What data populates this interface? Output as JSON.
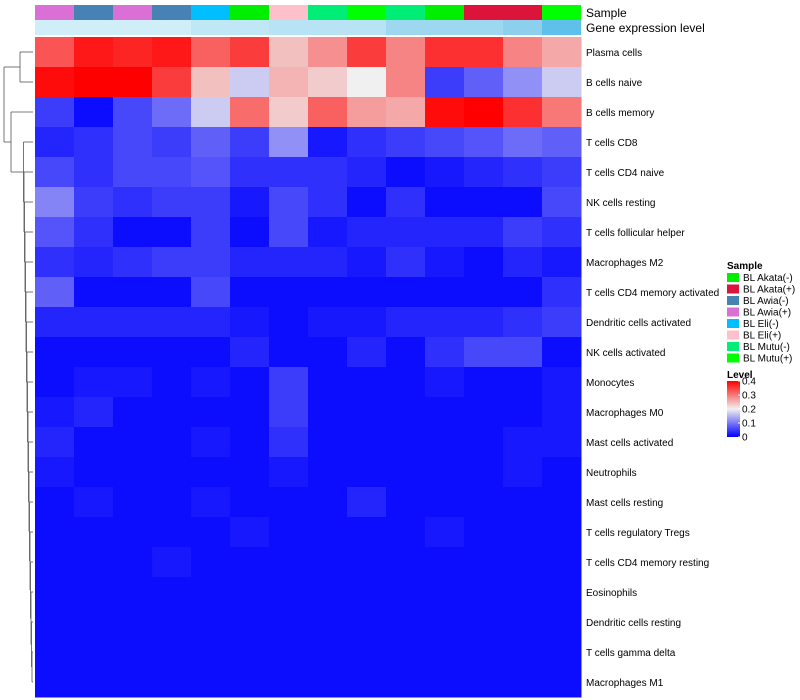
{
  "chart_data": {
    "type": "heatmap",
    "annotation_labels": {
      "sample": "Sample",
      "expression": "Gene expression level"
    },
    "legend": {
      "sample_title": "Sample",
      "level_title": "Level",
      "groups": [
        {
          "name": "BL Akata(-)",
          "color": "#00ee00"
        },
        {
          "name": "BL Akata(+)",
          "color": "#dc143c"
        },
        {
          "name": "BL Awia(-)",
          "color": "#4682b4"
        },
        {
          "name": "BL Awia(+)",
          "color": "#da70d6"
        },
        {
          "name": "BL Eli(-)",
          "color": "#00bfff"
        },
        {
          "name": "BL Eli(+)",
          "color": "#ffc0cb"
        },
        {
          "name": "BL Mutu(-)",
          "color": "#00ee76"
        },
        {
          "name": "BL Mutu(+)",
          "color": "#00ff00"
        }
      ],
      "level_ticks": [
        0.4,
        0.3,
        0.2,
        0.1,
        0
      ]
    },
    "color_scale": {
      "min": 0,
      "mid": 0.2,
      "max": 0.4,
      "low_color": "#0000ff",
      "mid_color": "#f0f0f0",
      "high_color": "#ff0000"
    },
    "column_samples": [
      "BL Awia(+)",
      "BL Awia(-)",
      "BL Awia(+)",
      "BL Awia(-)",
      "BL Eli(-)",
      "BL Akata(-)",
      "BL Eli(+)",
      "BL Mutu(-)",
      "BL Mutu(+)",
      "BL Mutu(-)",
      "BL Akata(-)",
      "BL Akata(+)",
      "BL Akata(+)",
      "BL Mutu(+)"
    ],
    "column_expression": [
      "#cfeef8",
      "#cfeef8",
      "#cfeef8",
      "#cfeef8",
      "#bfe7f6",
      "#bfe7f6",
      "#b8e3f4",
      "#b8e3f4",
      "#b8e3f4",
      "#9ed8f0",
      "#9ed8f0",
      "#9ed8f0",
      "#8cd0ee",
      "#5fc1e9"
    ],
    "rows": [
      "Plasma cells",
      "B cells naive",
      "B cells memory",
      "T cells CD8",
      "T cells CD4 naive",
      "NK cells resting",
      "T cells follicular helper",
      "Macrophages M2",
      "T cells CD4 memory activated",
      "Dendritic cells activated",
      "NK cells activated",
      "Monocytes",
      "Macrophages M0",
      "Mast cells activated",
      "Neutrophils",
      "Mast cells resting",
      "T cells regulatory  Tregs",
      "T cells CD4 memory resting",
      "Eosinophils",
      "Dendritic cells resting",
      "T cells gamma delta",
      "Macrophages M1"
    ],
    "values": [
      [
        0.33,
        0.38,
        0.37,
        0.38,
        0.32,
        0.35,
        0.24,
        0.28,
        0.35,
        0.29,
        0.36,
        0.36,
        0.29,
        0.26
      ],
      [
        0.39,
        0.4,
        0.4,
        0.35,
        0.24,
        0.17,
        0.25,
        0.23,
        0.2,
        0.29,
        0.05,
        0.08,
        0.12,
        0.17
      ],
      [
        0.05,
        0.01,
        0.06,
        0.09,
        0.17,
        0.31,
        0.23,
        0.32,
        0.27,
        0.26,
        0.39,
        0.4,
        0.36,
        0.3
      ],
      [
        0.03,
        0.04,
        0.06,
        0.05,
        0.08,
        0.05,
        0.12,
        0.02,
        0.04,
        0.05,
        0.06,
        0.07,
        0.09,
        0.08
      ],
      [
        0.06,
        0.04,
        0.06,
        0.06,
        0.07,
        0.04,
        0.04,
        0.04,
        0.03,
        0.01,
        0.02,
        0.03,
        0.04,
        0.05
      ],
      [
        0.11,
        0.05,
        0.04,
        0.05,
        0.05,
        0.02,
        0.06,
        0.04,
        0.01,
        0.04,
        0.01,
        0.01,
        0.01,
        0.06
      ],
      [
        0.07,
        0.04,
        0.01,
        0.01,
        0.05,
        0.01,
        0.06,
        0.02,
        0.03,
        0.03,
        0.03,
        0.03,
        0.05,
        0.04
      ],
      [
        0.04,
        0.03,
        0.04,
        0.05,
        0.05,
        0.03,
        0.03,
        0.03,
        0.02,
        0.04,
        0.02,
        0.01,
        0.03,
        0.02
      ],
      [
        0.08,
        0.01,
        0.01,
        0.01,
        0.06,
        0.01,
        0.01,
        0.01,
        0.01,
        0.01,
        0.01,
        0.01,
        0.01,
        0.04
      ],
      [
        0.03,
        0.03,
        0.03,
        0.03,
        0.03,
        0.02,
        0.01,
        0.02,
        0.02,
        0.03,
        0.03,
        0.03,
        0.04,
        0.05
      ],
      [
        0.01,
        0.01,
        0.01,
        0.01,
        0.01,
        0.03,
        0.01,
        0.01,
        0.03,
        0.01,
        0.04,
        0.06,
        0.06,
        0.01
      ],
      [
        0.01,
        0.02,
        0.02,
        0.01,
        0.02,
        0.01,
        0.05,
        0.01,
        0.01,
        0.01,
        0.02,
        0.01,
        0.01,
        0.02
      ],
      [
        0.02,
        0.03,
        0.01,
        0.01,
        0.01,
        0.01,
        0.05,
        0.01,
        0.01,
        0.01,
        0.01,
        0.01,
        0.01,
        0.02
      ],
      [
        0.03,
        0.01,
        0.01,
        0.01,
        0.02,
        0.01,
        0.04,
        0.01,
        0.01,
        0.01,
        0.01,
        0.01,
        0.02,
        0.02
      ],
      [
        0.02,
        0.01,
        0.01,
        0.01,
        0.01,
        0.01,
        0.02,
        0.01,
        0.01,
        0.01,
        0.01,
        0.01,
        0.02,
        0.01
      ],
      [
        0.01,
        0.02,
        0.01,
        0.01,
        0.02,
        0.01,
        0.01,
        0.01,
        0.03,
        0.01,
        0.01,
        0.01,
        0.01,
        0.01
      ],
      [
        0.01,
        0.01,
        0.01,
        0.01,
        0.01,
        0.02,
        0.01,
        0.01,
        0.01,
        0.01,
        0.02,
        0.01,
        0.01,
        0.01
      ],
      [
        0.01,
        0.01,
        0.01,
        0.02,
        0.01,
        0.01,
        0.01,
        0.01,
        0.01,
        0.01,
        0.01,
        0.01,
        0.01,
        0.01
      ],
      [
        0.01,
        0.01,
        0.01,
        0.01,
        0.01,
        0.01,
        0.01,
        0.01,
        0.01,
        0.01,
        0.01,
        0.01,
        0.01,
        0.01
      ],
      [
        0.01,
        0.01,
        0.01,
        0.01,
        0.01,
        0.01,
        0.01,
        0.01,
        0.01,
        0.01,
        0.01,
        0.01,
        0.01,
        0.01
      ],
      [
        0.01,
        0.01,
        0.01,
        0.01,
        0.01,
        0.01,
        0.01,
        0.01,
        0.01,
        0.01,
        0.01,
        0.01,
        0.01,
        0.01
      ],
      [
        0.01,
        0.01,
        0.01,
        0.01,
        0.01,
        0.01,
        0.01,
        0.01,
        0.01,
        0.01,
        0.01,
        0.01,
        0.01,
        0.01
      ]
    ]
  }
}
